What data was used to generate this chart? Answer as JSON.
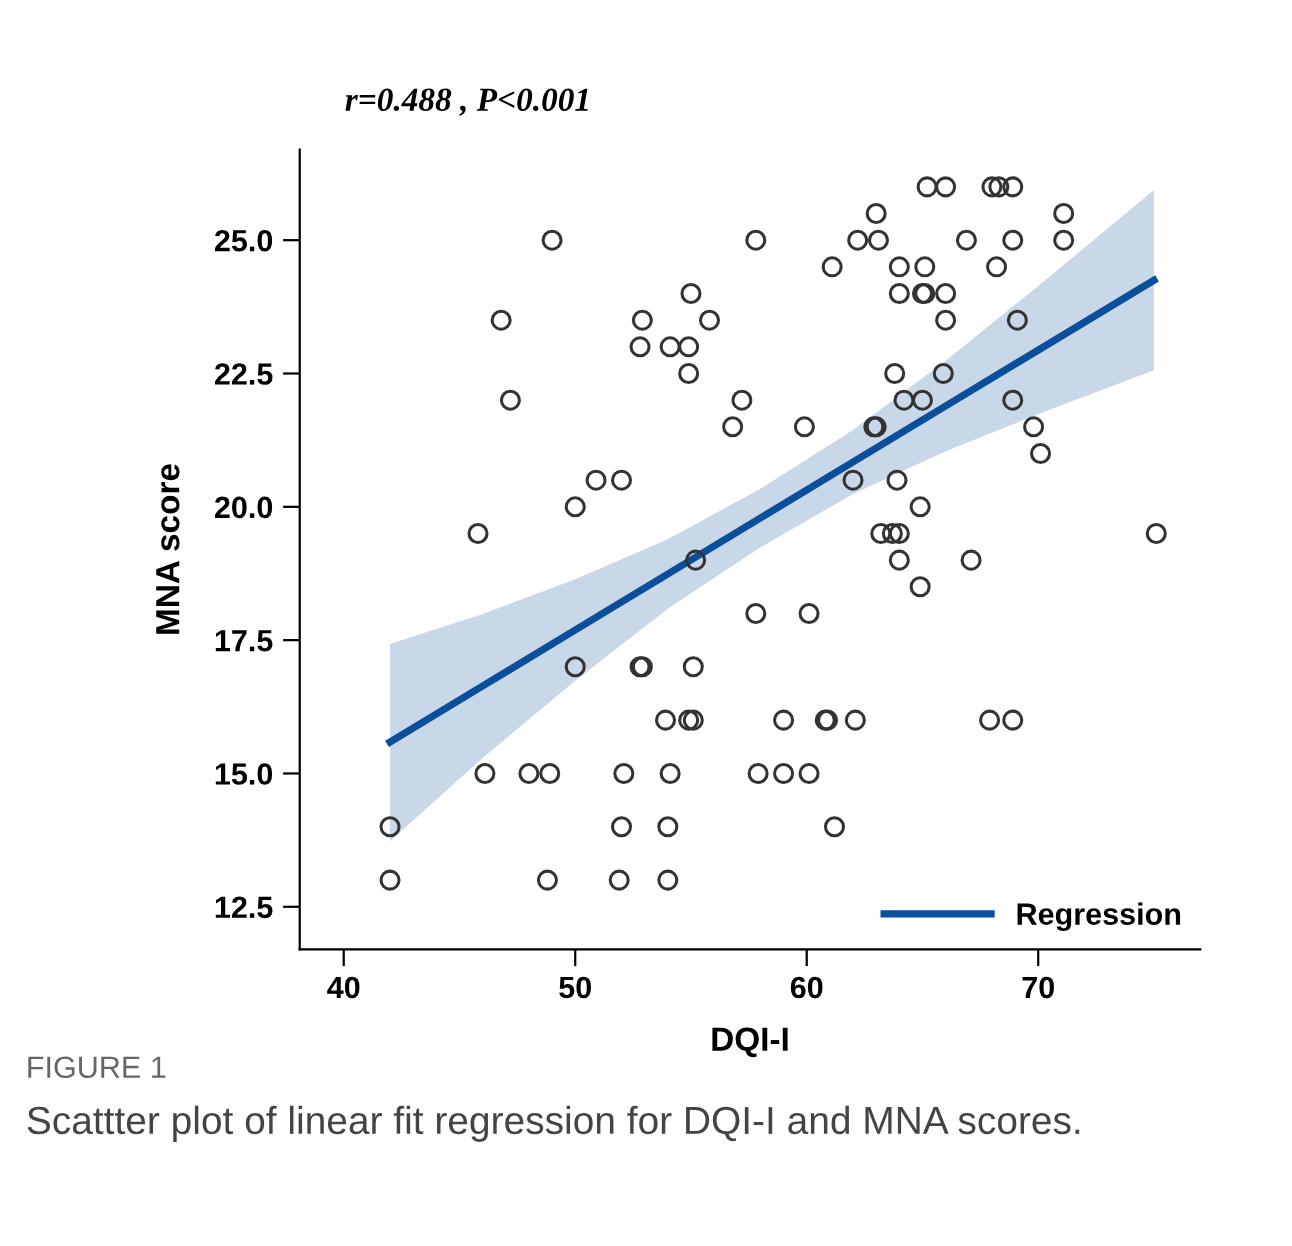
{
  "chart_data": {
    "type": "scatter",
    "title": "r=0.488 , P<0.001",
    "xlabel": "DQI-I",
    "ylabel": "MNA score",
    "annotations": [
      "FIGURE 1",
      "Scattter plot of linear fit regression for DQI-I and MNA scores."
    ],
    "xlim": [
      38.1,
      77.0
    ],
    "xticks": [
      40,
      50,
      60,
      70
    ],
    "ylim": [
      11.7,
      26.7
    ],
    "yticks": [
      {
        "value": 12.5,
        "label": "12.5"
      },
      {
        "value": 15,
        "label": "15.0"
      },
      {
        "value": 17.5,
        "label": "17.5"
      },
      {
        "value": 20,
        "label": "20.0"
      },
      {
        "value": 22.5,
        "label": "22.5"
      },
      {
        "value": 25,
        "label": "25.0"
      }
    ],
    "grid": false,
    "legend": "bottom right",
    "series": [
      {
        "marker": "circle",
        "color": "#333333",
        "x": [
          49.0,
          46.8,
          47.2,
          45.8,
          55.0,
          52.9,
          55.8,
          52.8,
          54.1,
          54.9,
          54.9,
          57.2,
          56.8,
          50.9,
          52.0,
          50.0,
          57.8,
          55.2,
          50.0,
          52.8,
          52.9,
          55.1,
          53.9,
          54.9,
          55.1,
          42.0,
          42.0,
          46.1,
          48.0,
          48.9,
          52.1,
          54.1,
          52.0,
          54.0,
          48.8,
          51.9,
          54.0,
          57.8,
          57.9,
          60.1,
          59.0,
          60.8,
          60.9,
          62.1,
          67.9,
          68.9,
          59.0,
          60.1,
          61.2,
          64.0,
          67.1,
          64.9,
          65.2,
          66.0,
          68.0,
          68.3,
          68.9,
          63.0,
          62.2,
          63.1,
          71.1,
          71.1,
          66.9,
          68.9,
          61.1,
          64.0,
          65.1,
          68.2,
          64.0,
          65.0,
          65.1,
          66.0,
          66.0,
          69.1,
          63.8,
          65.9,
          64.2,
          65.0,
          68.9,
          59.9,
          62.9,
          63.0,
          69.8,
          70.1,
          62.0,
          63.9,
          64.9,
          63.2,
          63.7,
          64.0,
          75.1
        ],
        "values": [
          25.0,
          23.5,
          22.0,
          19.5,
          24.0,
          23.5,
          23.5,
          23.0,
          23.0,
          23.0,
          22.5,
          22.0,
          21.5,
          20.5,
          20.5,
          20.0,
          25.0,
          19.0,
          17.0,
          17.0,
          17.0,
          17.0,
          16.0,
          16.0,
          16.0,
          14.0,
          13.0,
          15.0,
          15.0,
          15.0,
          15.0,
          15.0,
          14.0,
          14.0,
          13.0,
          13.0,
          13.0,
          18.0,
          15.0,
          18.0,
          16.0,
          16.0,
          16.0,
          16.0,
          16.0,
          16.0,
          15.0,
          15.0,
          14.0,
          19.0,
          19.0,
          18.5,
          26.0,
          26.0,
          26.0,
          26.0,
          26.0,
          25.5,
          25.0,
          25.0,
          25.5,
          25.0,
          25.0,
          25.0,
          24.5,
          24.5,
          24.5,
          24.5,
          24.0,
          24.0,
          24.0,
          24.0,
          23.5,
          23.5,
          22.5,
          22.5,
          22.0,
          22.0,
          22.0,
          21.5,
          21.5,
          21.5,
          21.5,
          21.0,
          20.5,
          20.5,
          20.0,
          19.5,
          19.5,
          19.5,
          19.5
        ]
      },
      {
        "type": "line",
        "marker": "none",
        "name": "Regression",
        "color": "#0b4f9c",
        "x": [
          42,
          46,
          50,
          54,
          58,
          62,
          66,
          70,
          75
        ],
        "values": [
          15.59,
          16.64,
          17.69,
          18.74,
          19.79,
          20.84,
          21.89,
          22.94,
          24.25
        ],
        "lower": [
          13.73,
          15.29,
          16.74,
          18.09,
          19.24,
          20.24,
          21.04,
          21.74,
          22.56
        ],
        "upper": [
          17.43,
          17.99,
          18.64,
          19.39,
          20.34,
          21.44,
          22.74,
          24.14,
          25.94
        ]
      }
    ]
  }
}
